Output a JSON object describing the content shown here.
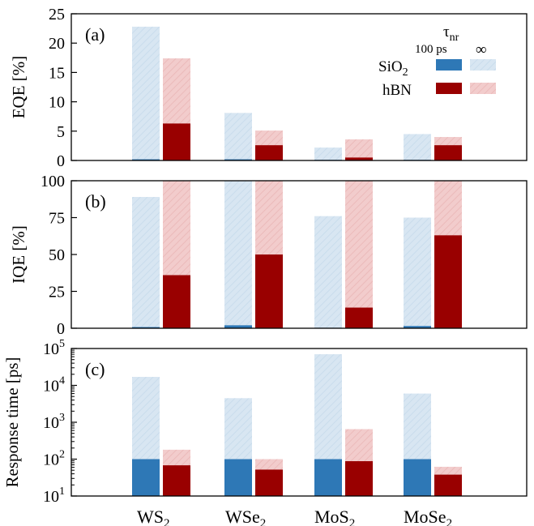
{
  "legend": {
    "header": "τ",
    "header_sub": "nr",
    "col1": "100 ps",
    "col2": "∞",
    "rows": [
      {
        "label": "SiO",
        "sub": "2",
        "key": "sio2"
      },
      {
        "label": "hBN",
        "sub": "",
        "key": "hbn"
      }
    ]
  },
  "colors": {
    "sio2_solid": "#2e78b6",
    "sio2_hatched": "#d8e6f2",
    "hbn_solid": "#990000",
    "hbn_hatched": "#f2cccc"
  },
  "chart_data": [
    {
      "type": "bar",
      "panel_label": "(a)",
      "ylabel": "EQE [%]",
      "ylim": [
        0,
        25
      ],
      "yticks": [
        "0",
        "5",
        "10",
        "15",
        "20",
        "25"
      ],
      "categories": [
        "WS2",
        "WSe2",
        "MoS2",
        "MoSe2"
      ],
      "series": [
        {
          "name": "SiO2 ∞",
          "substrate": "sio2",
          "style": "hatched",
          "values": [
            22.8,
            8.1,
            2.2,
            4.5
          ]
        },
        {
          "name": "SiO2 100 ps",
          "substrate": "sio2",
          "style": "solid",
          "values": [
            0.2,
            0.2,
            0.1,
            0.1
          ]
        },
        {
          "name": "hBN ∞",
          "substrate": "hbn",
          "style": "hatched",
          "values": [
            17.4,
            5.1,
            3.6,
            4.0
          ]
        },
        {
          "name": "hBN 100 ps",
          "substrate": "hbn",
          "style": "solid",
          "values": [
            6.3,
            2.6,
            0.5,
            2.6
          ]
        }
      ]
    },
    {
      "type": "bar",
      "panel_label": "(b)",
      "ylabel": "IQE [%]",
      "ylim": [
        0,
        100
      ],
      "yticks": [
        "0",
        "25",
        "50",
        "75",
        "100"
      ],
      "categories": [
        "WS2",
        "WSe2",
        "MoS2",
        "MoSe2"
      ],
      "series": [
        {
          "name": "SiO2 ∞",
          "substrate": "sio2",
          "style": "hatched",
          "values": [
            89,
            100,
            76,
            75
          ]
        },
        {
          "name": "SiO2 100 ps",
          "substrate": "sio2",
          "style": "solid",
          "values": [
            0.8,
            2,
            0.3,
            1.5
          ]
        },
        {
          "name": "hBN ∞",
          "substrate": "hbn",
          "style": "hatched",
          "values": [
            100,
            100,
            100,
            100
          ]
        },
        {
          "name": "hBN 100 ps",
          "substrate": "hbn",
          "style": "solid",
          "values": [
            36,
            50,
            14,
            63
          ]
        }
      ]
    },
    {
      "type": "bar",
      "panel_label": "(c)",
      "ylabel": "Response time [ps]",
      "yscale": "log",
      "ylim": [
        10,
        100000
      ],
      "yticks_exp": [
        "1",
        "2",
        "3",
        "4",
        "5"
      ],
      "ytick_base": "10",
      "categories": [
        "WS2",
        "WSe2",
        "MoS2",
        "MoSe2"
      ],
      "series": [
        {
          "name": "SiO2 ∞",
          "substrate": "sio2",
          "style": "hatched",
          "values": [
            17000,
            4500,
            70000,
            6000
          ]
        },
        {
          "name": "SiO2 100 ps",
          "substrate": "sio2",
          "style": "solid",
          "values": [
            100,
            100,
            100,
            100
          ]
        },
        {
          "name": "hBN ∞",
          "substrate": "hbn",
          "style": "hatched",
          "values": [
            180,
            100,
            650,
            62
          ]
        },
        {
          "name": "hBN 100 ps",
          "substrate": "hbn",
          "style": "solid",
          "values": [
            68,
            52,
            88,
            38
          ]
        }
      ]
    }
  ],
  "xcategories": [
    {
      "base": "WS",
      "sub": "2"
    },
    {
      "base": "WSe",
      "sub": "2"
    },
    {
      "base": "MoS",
      "sub": "2"
    },
    {
      "base": "MoSe",
      "sub": "2"
    }
  ]
}
